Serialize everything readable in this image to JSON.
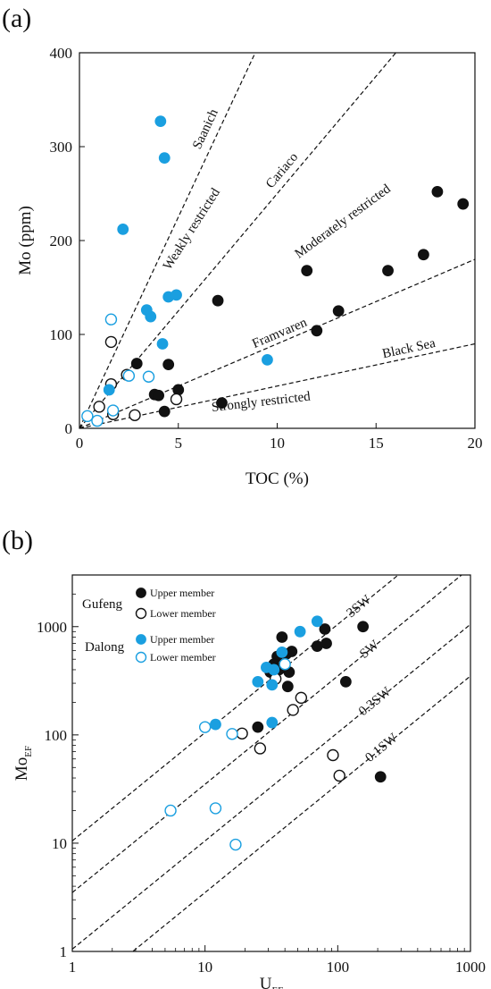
{
  "panels": {
    "a": {
      "letter": "(a)"
    },
    "b": {
      "letter": "(b)"
    }
  },
  "colors": {
    "gufeng": "#111111",
    "dalong": "#1a9fe0"
  },
  "chart_data": [
    {
      "type": "scatter",
      "xlabel": "TOC (%)",
      "ylabel": "Mo (ppm)",
      "xlim": [
        0,
        20
      ],
      "ylim": [
        0,
        400
      ],
      "xticks": [
        0,
        5,
        10,
        15,
        20
      ],
      "yticks": [
        0,
        100,
        200,
        300,
        400
      ],
      "reference_lines": [
        {
          "label": "Saanich",
          "slope": 45
        },
        {
          "label": "Cariaco",
          "slope": 25
        },
        {
          "label": "Framvaren",
          "slope": 9
        },
        {
          "label": "Black Sea",
          "slope": 4.5
        }
      ],
      "region_labels": [
        "Weakly restricted",
        "Moderately restricted",
        "Strongly restricted"
      ],
      "series": [
        {
          "style": "gufeng-upper",
          "points": [
            [
              2.9,
              69
            ],
            [
              4.5,
              68
            ],
            [
              3.8,
              36
            ],
            [
              4.0,
              35
            ],
            [
              4.3,
              18
            ],
            [
              5.0,
              41
            ],
            [
              7.0,
              136
            ],
            [
              7.2,
              27
            ],
            [
              11.5,
              168
            ],
            [
              12.0,
              104
            ],
            [
              13.1,
              125
            ],
            [
              15.6,
              168
            ],
            [
              17.4,
              185
            ],
            [
              18.1,
              252
            ],
            [
              19.4,
              239
            ]
          ]
        },
        {
          "style": "gufeng-lower",
          "points": [
            [
              1.6,
              92
            ],
            [
              1.6,
              47
            ],
            [
              1.0,
              23
            ],
            [
              1.7,
              15
            ],
            [
              2.8,
              14
            ],
            [
              4.9,
              31
            ],
            [
              2.4,
              57
            ]
          ]
        },
        {
          "style": "dalong-upper",
          "points": [
            [
              4.1,
              327
            ],
            [
              4.3,
              288
            ],
            [
              2.2,
              212
            ],
            [
              4.5,
              140
            ],
            [
              4.9,
              142
            ],
            [
              3.4,
              126
            ],
            [
              3.6,
              119
            ],
            [
              4.2,
              90
            ],
            [
              9.5,
              73
            ],
            [
              1.5,
              41
            ]
          ]
        },
        {
          "style": "dalong-lower",
          "points": [
            [
              1.6,
              116
            ],
            [
              3.5,
              55
            ],
            [
              2.5,
              56
            ],
            [
              1.7,
              19
            ],
            [
              0.9,
              8
            ],
            [
              0.4,
              13
            ]
          ]
        }
      ]
    },
    {
      "type": "scatter",
      "xlabel": "UEF",
      "ylabel": "MoEF",
      "log_scale": true,
      "xlim": [
        1,
        1000
      ],
      "ylim": [
        1,
        3000
      ],
      "xticks": [
        1,
        10,
        100,
        1000
      ],
      "yticks": [
        1,
        10,
        100,
        1000
      ],
      "reference_lines": [
        {
          "label": "3SW",
          "factor": 10.5
        },
        {
          "label": "SW",
          "factor": 3.5
        },
        {
          "label": "0.3SW",
          "factor": 1.05
        },
        {
          "label": "0.1SW",
          "factor": 0.35
        }
      ],
      "legend": [
        {
          "group": "Gufeng",
          "entries": [
            {
              "label": "Upper member",
              "style": "gufeng-upper"
            },
            {
              "label": "Lower member",
              "style": "gufeng-lower"
            }
          ]
        },
        {
          "group": "Dalong",
          "entries": [
            {
              "label": "Upper member",
              "style": "dalong-upper"
            },
            {
              "label": "Lower member",
              "style": "dalong-lower"
            }
          ]
        }
      ],
      "series": [
        {
          "style": "gufeng-upper",
          "points": [
            [
              38,
              800
            ],
            [
              80,
              950
            ],
            [
              155,
              1000
            ],
            [
              35,
              530
            ],
            [
              41,
              560
            ],
            [
              45,
              590
            ],
            [
              33,
              450
            ],
            [
              36,
              400
            ],
            [
              31,
              380
            ],
            [
              43,
              380
            ],
            [
              70,
              660
            ],
            [
              82,
              700
            ],
            [
              42,
              280
            ],
            [
              25,
              118
            ],
            [
              115,
              310
            ],
            [
              210,
              41
            ]
          ]
        },
        {
          "style": "gufeng-lower",
          "points": [
            [
              34,
              330
            ],
            [
              53,
              220
            ],
            [
              46,
              170
            ],
            [
              19,
              103
            ],
            [
              26,
              75
            ],
            [
              92,
              65
            ],
            [
              103,
              42
            ]
          ]
        },
        {
          "style": "dalong-upper",
          "points": [
            [
              70,
              1120
            ],
            [
              52,
              900
            ],
            [
              38,
              580
            ],
            [
              29,
              420
            ],
            [
              33,
              400
            ],
            [
              25,
              310
            ],
            [
              32,
              290
            ],
            [
              12,
              125
            ],
            [
              32,
              130
            ]
          ]
        },
        {
          "style": "dalong-lower",
          "points": [
            [
              40,
              450
            ],
            [
              10,
              118
            ],
            [
              16,
              102
            ],
            [
              5.5,
              20
            ],
            [
              12,
              21
            ],
            [
              17,
              9.7
            ]
          ]
        }
      ]
    }
  ]
}
